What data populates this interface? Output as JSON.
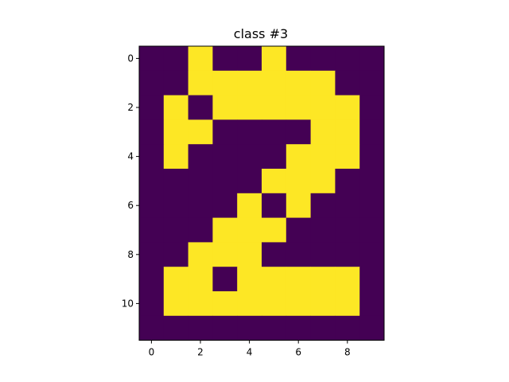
{
  "chart_data": {
    "type": "heatmap",
    "title": "class #3",
    "xlabel": "",
    "ylabel": "",
    "colormap": {
      "low": "#440154",
      "high": "#fde725"
    },
    "x_ticks": [
      "0",
      "2",
      "4",
      "6",
      "8"
    ],
    "y_ticks": [
      "0",
      "2",
      "4",
      "6",
      "8",
      "10"
    ],
    "xlim": [
      -0.5,
      9.5
    ],
    "ylim": [
      11.5,
      -0.5
    ],
    "grid": false,
    "matrix": [
      [
        0,
        0,
        1,
        0,
        0,
        1,
        0,
        0,
        0,
        0
      ],
      [
        0,
        0,
        1,
        1,
        1,
        1,
        1,
        1,
        0,
        0
      ],
      [
        0,
        1,
        0,
        1,
        1,
        1,
        1,
        1,
        1,
        0
      ],
      [
        0,
        1,
        1,
        0,
        0,
        0,
        0,
        1,
        1,
        0
      ],
      [
        0,
        1,
        0,
        0,
        0,
        0,
        1,
        1,
        1,
        0
      ],
      [
        0,
        0,
        0,
        0,
        0,
        1,
        1,
        1,
        0,
        0
      ],
      [
        0,
        0,
        0,
        0,
        1,
        0,
        1,
        0,
        0,
        0
      ],
      [
        0,
        0,
        0,
        1,
        1,
        1,
        0,
        0,
        0,
        0
      ],
      [
        0,
        0,
        1,
        1,
        1,
        0,
        0,
        0,
        0,
        0
      ],
      [
        0,
        1,
        1,
        0,
        1,
        1,
        1,
        1,
        1,
        0
      ],
      [
        0,
        1,
        1,
        1,
        1,
        1,
        1,
        1,
        1,
        0
      ],
      [
        0,
        0,
        0,
        0,
        0,
        0,
        0,
        0,
        0,
        0
      ]
    ]
  }
}
